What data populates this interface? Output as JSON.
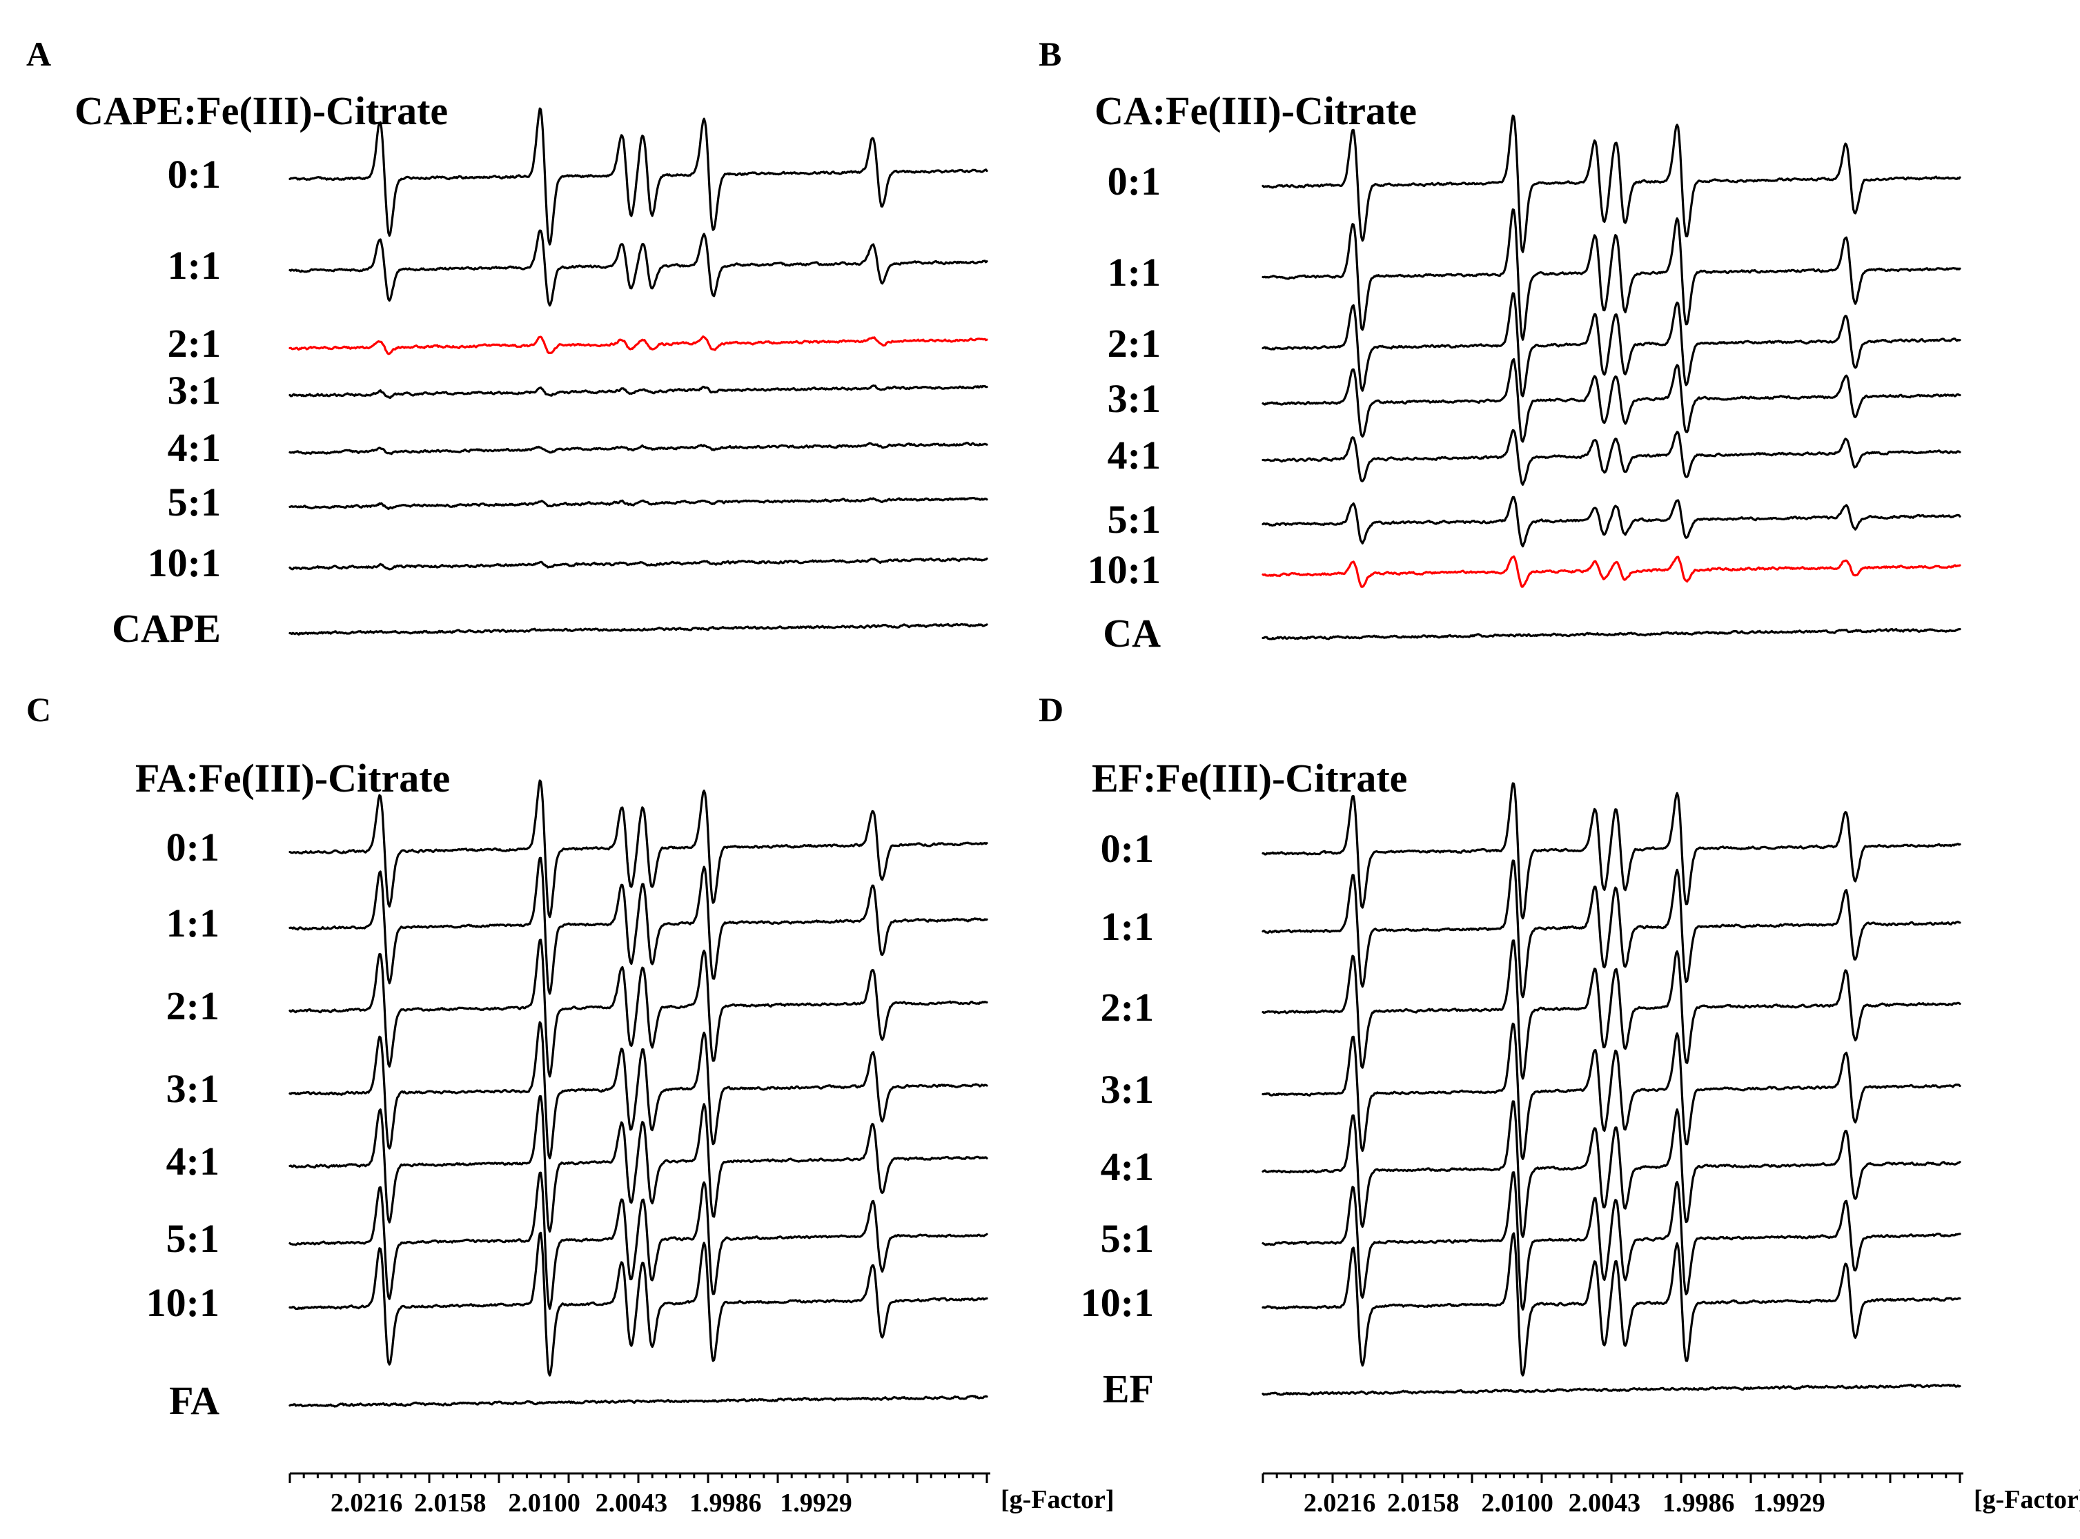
{
  "chart_data": [
    {
      "type": "line",
      "panel": "A",
      "title": "CAPE:Fe(III)-Citrate",
      "xlabel": "[g-Factor]",
      "x_ticks": [
        "2.0216",
        "2.0158",
        "2.0100",
        "2.0043",
        "1.9986",
        "1.9929"
      ],
      "highlight_color": "#ff0000",
      "series": [
        {
          "name": "0:1",
          "amplitude": 1.0,
          "highlight": false
        },
        {
          "name": "1:1",
          "amplitude": 0.55,
          "highlight": false
        },
        {
          "name": "2:1",
          "amplitude": 0.12,
          "highlight": true
        },
        {
          "name": "3:1",
          "amplitude": 0.05,
          "highlight": false
        },
        {
          "name": "4:1",
          "amplitude": 0.04,
          "highlight": false
        },
        {
          "name": "5:1",
          "amplitude": 0.04,
          "highlight": false
        },
        {
          "name": "10:1",
          "amplitude": 0.03,
          "highlight": false
        },
        {
          "name": "CAPE",
          "amplitude": 0.04,
          "highlight": false
        }
      ]
    },
    {
      "type": "line",
      "panel": "B",
      "title": "CA:Fe(III)-Citrate",
      "xlabel": "[g-Factor]",
      "x_ticks": [
        "2.0216",
        "2.0158",
        "2.0100",
        "2.0043",
        "1.9986",
        "1.9929"
      ],
      "highlight_color": "#ff0000",
      "series": [
        {
          "name": "0:1",
          "amplitude": 1.0,
          "highlight": false
        },
        {
          "name": "1:1",
          "amplitude": 0.95,
          "highlight": false
        },
        {
          "name": "2:1",
          "amplitude": 0.75,
          "highlight": false
        },
        {
          "name": "3:1",
          "amplitude": 0.6,
          "highlight": false
        },
        {
          "name": "4:1",
          "amplitude": 0.4,
          "highlight": false
        },
        {
          "name": "5:1",
          "amplitude": 0.35,
          "highlight": false
        },
        {
          "name": "10:1",
          "amplitude": 0.22,
          "highlight": true
        },
        {
          "name": "CA",
          "amplitude": 0.06,
          "highlight": false
        }
      ]
    },
    {
      "type": "line",
      "panel": "C",
      "title": "FA:Fe(III)-Citrate",
      "xlabel": "[g-Factor]",
      "x_ticks": [
        "2.0216",
        "2.0158",
        "2.0100",
        "2.0043",
        "1.9986",
        "1.9929"
      ],
      "highlight_color": "#ff0000",
      "series": [
        {
          "name": "0:1",
          "amplitude": 1.0,
          "highlight": false
        },
        {
          "name": "1:1",
          "amplitude": 1.0,
          "highlight": false
        },
        {
          "name": "2:1",
          "amplitude": 1.0,
          "highlight": false
        },
        {
          "name": "3:1",
          "amplitude": 1.0,
          "highlight": false
        },
        {
          "name": "4:1",
          "amplitude": 1.0,
          "highlight": false
        },
        {
          "name": "5:1",
          "amplitude": 1.0,
          "highlight": false
        },
        {
          "name": "10:1",
          "amplitude": 1.05,
          "highlight": false
        },
        {
          "name": "FA",
          "amplitude": 0.06,
          "highlight": false
        }
      ]
    },
    {
      "type": "line",
      "panel": "D",
      "title": "EF:Fe(III)-Citrate",
      "xlabel": "[g-Factor]",
      "x_ticks": [
        "2.0216",
        "2.0158",
        "2.0100",
        "2.0043",
        "1.9986",
        "1.9929"
      ],
      "highlight_color": "#ff0000",
      "series": [
        {
          "name": "0:1",
          "amplitude": 1.0,
          "highlight": false
        },
        {
          "name": "1:1",
          "amplitude": 1.0,
          "highlight": false
        },
        {
          "name": "2:1",
          "amplitude": 1.0,
          "highlight": false
        },
        {
          "name": "3:1",
          "amplitude": 1.0,
          "highlight": false
        },
        {
          "name": "4:1",
          "amplitude": 1.0,
          "highlight": false
        },
        {
          "name": "5:1",
          "amplitude": 1.0,
          "highlight": false
        },
        {
          "name": "10:1",
          "amplitude": 1.05,
          "highlight": false
        },
        {
          "name": "EF",
          "amplitude": 0.06,
          "highlight": false
        }
      ]
    }
  ]
}
